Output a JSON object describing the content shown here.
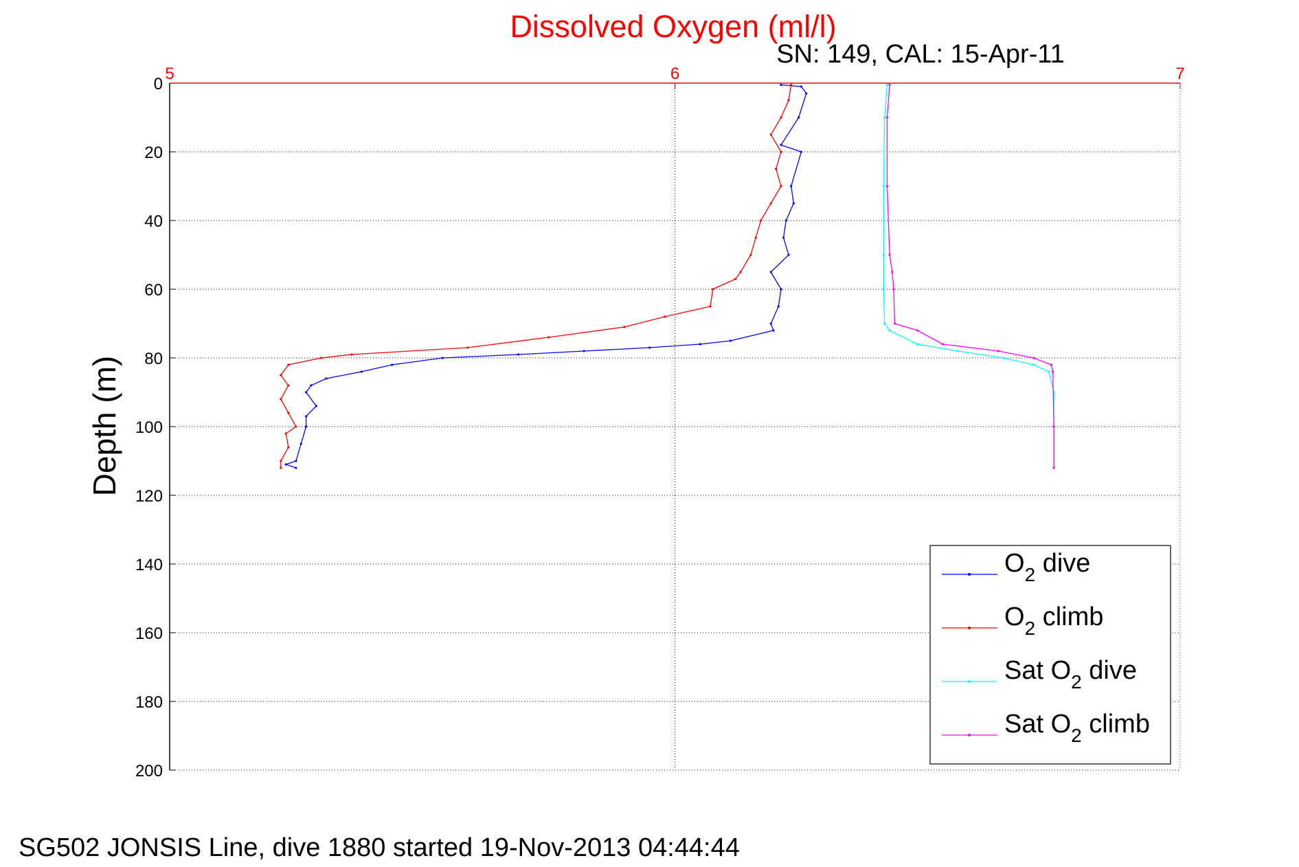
{
  "chart_data": {
    "type": "line",
    "title": "Dissolved Oxygen (ml/l)",
    "subtitle": "SN: 149, CAL: 15-Apr-11",
    "xlabel": "",
    "ylabel": "Depth (m)",
    "footer": "SG502 JONSIS Line, dive 1880 started 19-Nov-2013 04:44:44",
    "xlim": [
      5,
      7
    ],
    "ylim": [
      0,
      200
    ],
    "y_reversed": true,
    "xticks": [
      "5",
      "6",
      "7"
    ],
    "xtick_values": [
      5,
      6,
      7
    ],
    "yticks": [
      "0",
      "20",
      "40",
      "60",
      "80",
      "100",
      "120",
      "140",
      "160",
      "180",
      "200"
    ],
    "ytick_values": [
      0,
      20,
      40,
      60,
      80,
      100,
      120,
      140,
      160,
      180,
      200
    ],
    "grid": true,
    "legend_position": "bottom-right",
    "colors": {
      "title": "#ff0000",
      "xaxis": "#ff0000"
    },
    "series": [
      {
        "name": "O2 dive",
        "label_main": "O",
        "label_sub": "2",
        "label_rest": " dive",
        "color": "#0000ff",
        "x": [
          6.21,
          6.25,
          6.26,
          6.245,
          6.21,
          6.25,
          6.23,
          6.235,
          6.22,
          6.215,
          6.225,
          6.19,
          6.21,
          6.205,
          6.19,
          6.195,
          6.11,
          6.05,
          5.95,
          5.82,
          5.69,
          5.54,
          5.44,
          5.38,
          5.31,
          5.28,
          5.27,
          5.29,
          5.27,
          5.27,
          5.26,
          5.25,
          5.23,
          5.25
        ],
        "y": [
          0.5,
          1,
          3,
          10,
          18,
          20,
          30,
          35,
          40,
          45,
          50,
          55,
          60,
          65,
          70,
          72,
          75,
          76,
          77,
          78,
          79,
          80,
          82,
          84,
          86,
          88,
          90,
          94,
          97,
          100,
          105,
          110,
          111,
          112
        ]
      },
      {
        "name": "O2 climb",
        "label_main": "O",
        "label_sub": "2",
        "label_rest": " climb",
        "color": "#ff0000",
        "x": [
          6.23,
          6.225,
          6.21,
          6.19,
          6.21,
          6.2,
          6.21,
          6.19,
          6.17,
          6.16,
          6.15,
          6.13,
          6.12,
          6.075,
          6.07,
          5.98,
          5.9,
          5.75,
          5.59,
          5.36,
          5.3,
          5.235,
          5.22,
          5.235,
          5.22,
          5.235,
          5.25,
          5.23,
          5.235,
          5.22,
          5.22
        ],
        "y": [
          0.5,
          5,
          10,
          15,
          20,
          25,
          30,
          35,
          40,
          45,
          50,
          55,
          57,
          60,
          65,
          68,
          71,
          74,
          77,
          79,
          80,
          82,
          85,
          88,
          92,
          96,
          100,
          102,
          106,
          110,
          112
        ]
      },
      {
        "name": "Sat O2 dive",
        "label_main": "Sat O",
        "label_sub": "2",
        "label_rest": " dive",
        "color": "#00ffff",
        "x": [
          6.42,
          6.415,
          6.413,
          6.413,
          6.413,
          6.415,
          6.425,
          6.48,
          6.56,
          6.65,
          6.71,
          6.74,
          6.75,
          6.75,
          6.75
        ],
        "y": [
          0.5,
          10,
          30,
          50,
          60,
          70,
          72,
          76,
          78,
          80,
          82,
          84,
          90,
          100,
          112
        ]
      },
      {
        "name": "Sat O2 climb",
        "label_main": "Sat O",
        "label_sub": "2",
        "label_rest": " climb",
        "color": "#ff00ff",
        "x": [
          6.425,
          6.42,
          6.42,
          6.425,
          6.43,
          6.433,
          6.435,
          6.48,
          6.53,
          6.64,
          6.71,
          6.745,
          6.748,
          6.75,
          6.75
        ],
        "y": [
          0.5,
          10,
          30,
          50,
          55,
          60,
          70,
          72,
          76,
          78,
          80,
          82,
          84,
          100,
          112
        ]
      }
    ]
  }
}
